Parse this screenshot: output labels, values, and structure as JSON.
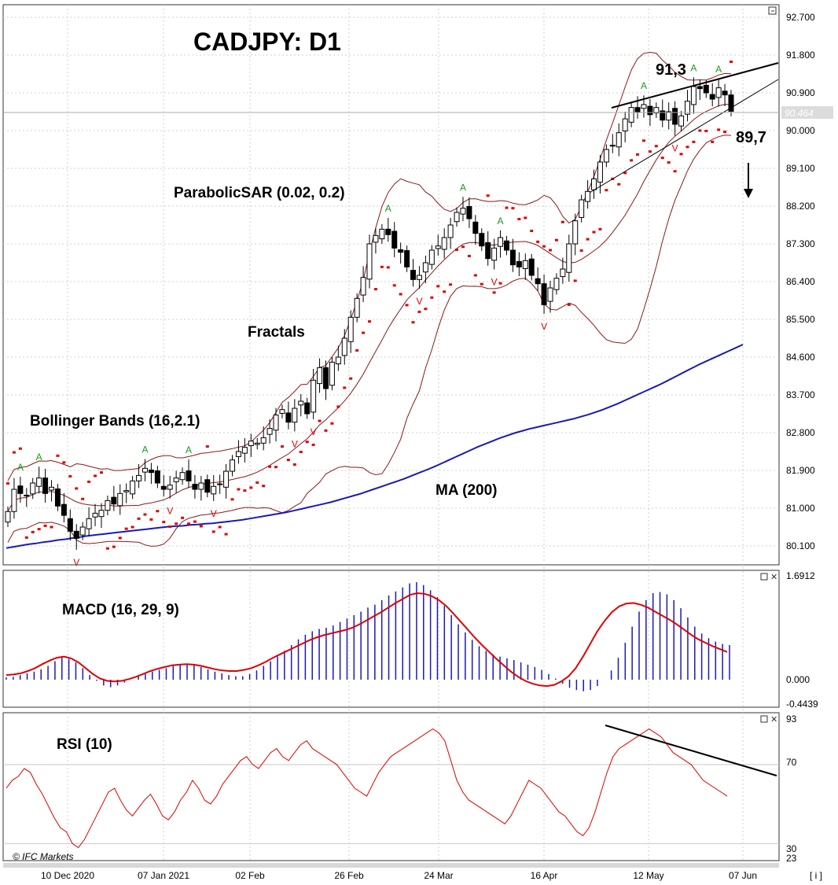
{
  "chart_data": {
    "type": "candlestick",
    "title": "CADJPY: D1",
    "annotations": {
      "resistance_label": "91,3",
      "support_label": "89,7",
      "parabolic_label": "ParabolicSAR (0.02, 0.2)",
      "fractals_label": "Fractals",
      "bollinger_label": "Bollinger Bands (16,2.1)",
      "ma_label": "MA (200)",
      "macd_label": "MACD (16, 29, 9)",
      "rsi_label": "RSI (10)",
      "copyright": "© IFC Markets",
      "corner_label": "[ i ]",
      "fractal_up_glyph": "A",
      "fractal_down_glyph": "V"
    },
    "price_axis": {
      "ticks": [
        "92.700",
        "91.800",
        "90.900",
        "90.000",
        "89.100",
        "88.200",
        "87.300",
        "86.400",
        "85.500",
        "84.600",
        "83.700",
        "82.800",
        "81.900",
        "81.000",
        "80.100"
      ],
      "tick_values": [
        92.7,
        91.8,
        90.9,
        90.0,
        89.1,
        88.2,
        87.3,
        86.4,
        85.5,
        84.6,
        83.7,
        82.8,
        81.9,
        81.0,
        80.1
      ],
      "current_price": "90.464",
      "ylim": [
        79.85,
        93.15
      ]
    },
    "macd_axis": {
      "ticks": [
        "1.6912",
        "0.000",
        "-0.4439"
      ],
      "tick_values": [
        1.6912,
        0.0,
        -0.4439
      ]
    },
    "rsi_axis": {
      "ticks": [
        "93",
        "70",
        "30",
        "23"
      ],
      "tick_values": [
        93,
        70,
        30,
        23
      ]
    },
    "x_axis": {
      "labels": [
        "10 Dec 2020",
        "07 Jan 2021",
        "02 Feb",
        "26 Feb",
        "24 Mar",
        "16 Apr",
        "12 May",
        "07 Jun"
      ]
    },
    "close": [
      80.92,
      81.45,
      81.35,
      81.3,
      81.6,
      81.72,
      81.35,
      81.5,
      81.05,
      80.83,
      80.45,
      80.28,
      80.55,
      80.75,
      80.88,
      80.95,
      81.18,
      81.1,
      81.35,
      81.42,
      81.65,
      81.78,
      81.95,
      81.85,
      81.6,
      81.45,
      81.55,
      81.72,
      81.85,
      81.65,
      81.45,
      81.6,
      81.38,
      81.52,
      81.58,
      81.88,
      82.15,
      82.35,
      82.45,
      82.6,
      82.55,
      82.68,
      82.9,
      83.22,
      83.35,
      83.05,
      83.38,
      83.55,
      83.25,
      84.05,
      84.35,
      83.85,
      84.48,
      84.6,
      85.05,
      85.55,
      86.0,
      86.5,
      87.3,
      87.5,
      87.65,
      87.52,
      87.2,
      87.1,
      86.75,
      86.45,
      86.55,
      86.85,
      87.15,
      87.25,
      87.45,
      87.75,
      88.05,
      88.15,
      87.9,
      87.55,
      87.25,
      86.95,
      87.2,
      87.45,
      87.15,
      86.8,
      86.75,
      86.9,
      86.55,
      86.35,
      85.85,
      86.25,
      86.48,
      86.7,
      87.3,
      87.85,
      88.35,
      88.55,
      88.85,
      89.25,
      89.55,
      89.65,
      89.95,
      90.28,
      90.55,
      90.45,
      90.62,
      90.38,
      90.55,
      90.25,
      90.45,
      90.15,
      90.35,
      90.7,
      91.05,
      91.0,
      90.9,
      90.75,
      91.02,
      90.85,
      90.46
    ],
    "ma200": [
      80.05,
      80.08,
      80.11,
      80.14,
      80.16,
      80.19,
      80.21,
      80.24,
      80.26,
      80.29,
      80.31,
      80.34,
      80.36,
      80.38,
      80.4,
      80.42,
      80.44,
      80.46,
      80.48,
      80.5,
      80.52,
      80.54,
      80.56,
      80.57,
      80.58,
      80.6,
      80.61,
      80.63,
      80.64,
      80.66,
      80.68,
      80.7,
      80.72,
      80.75,
      80.78,
      80.81,
      80.84,
      80.87,
      80.9,
      80.94,
      80.98,
      81.02,
      81.06,
      81.1,
      81.14,
      81.19,
      81.24,
      81.29,
      81.34,
      81.4,
      81.46,
      81.52,
      81.58,
      81.64,
      81.7,
      81.77,
      81.84,
      81.91,
      81.98,
      82.06,
      82.14,
      82.22,
      82.3,
      82.38,
      82.46,
      82.53,
      82.6,
      82.67,
      82.73,
      82.79,
      82.84,
      82.89,
      82.93,
      82.97,
      83.01,
      83.05,
      83.09,
      83.13,
      83.18,
      83.23,
      83.29,
      83.35,
      83.42,
      83.49,
      83.57,
      83.65,
      83.73,
      83.81,
      83.89,
      83.97,
      84.06,
      84.15,
      84.24,
      84.33,
      84.42,
      84.5,
      84.58,
      84.66,
      84.74,
      84.82,
      84.9
    ],
    "macd_histogram": [
      0.04,
      0.05,
      0.08,
      0.11,
      0.14,
      0.18,
      0.24,
      0.32,
      0.38,
      0.36,
      0.3,
      0.2,
      0.08,
      -0.02,
      -0.1,
      -0.13,
      -0.1,
      -0.05,
      0.0,
      0.06,
      0.1,
      0.14,
      0.17,
      0.2,
      0.24,
      0.26,
      0.27,
      0.25,
      0.22,
      0.18,
      0.14,
      0.11,
      0.08,
      0.06,
      0.06,
      0.1,
      0.16,
      0.24,
      0.32,
      0.4,
      0.5,
      0.6,
      0.7,
      0.78,
      0.84,
      0.88,
      0.9,
      0.94,
      1.0,
      1.06,
      1.12,
      1.18,
      1.25,
      1.3,
      1.38,
      1.46,
      1.53,
      1.6,
      1.67,
      1.69,
      1.64,
      1.55,
      1.43,
      1.28,
      1.12,
      0.96,
      0.82,
      0.69,
      0.58,
      0.5,
      0.44,
      0.4,
      0.37,
      0.34,
      0.3,
      0.26,
      0.22,
      0.17,
      0.1,
      0.02,
      -0.07,
      -0.14,
      -0.18,
      -0.2,
      -0.18,
      -0.11,
      0.0,
      0.16,
      0.38,
      0.64,
      0.92,
      1.18,
      1.38,
      1.5,
      1.52,
      1.48,
      1.38,
      1.24,
      1.08,
      0.92,
      0.8,
      0.72,
      0.66,
      0.62,
      0.6
    ],
    "macd_signal": [
      0.08,
      0.09,
      0.11,
      0.15,
      0.2,
      0.27,
      0.33,
      0.38,
      0.4,
      0.37,
      0.3,
      0.2,
      0.1,
      0.02,
      -0.02,
      -0.03,
      -0.02,
      0.01,
      0.05,
      0.1,
      0.15,
      0.19,
      0.22,
      0.25,
      0.26,
      0.27,
      0.26,
      0.24,
      0.21,
      0.18,
      0.16,
      0.15,
      0.15,
      0.17,
      0.2,
      0.25,
      0.31,
      0.38,
      0.44,
      0.5,
      0.56,
      0.62,
      0.68,
      0.73,
      0.77,
      0.8,
      0.83,
      0.86,
      0.9,
      0.96,
      1.03,
      1.1,
      1.17,
      1.25,
      1.33,
      1.4,
      1.47,
      1.5,
      1.49,
      1.45,
      1.38,
      1.28,
      1.15,
      1.01,
      0.87,
      0.73,
      0.6,
      0.48,
      0.36,
      0.25,
      0.14,
      0.05,
      -0.02,
      -0.07,
      -0.1,
      -0.11,
      -0.09,
      -0.03,
      0.06,
      0.2,
      0.4,
      0.62,
      0.84,
      1.02,
      1.17,
      1.27,
      1.32,
      1.33,
      1.3,
      1.25,
      1.18,
      1.11,
      1.04,
      0.96,
      0.87,
      0.78,
      0.7,
      0.64,
      0.58,
      0.53,
      0.48
    ],
    "rsi": [
      58,
      62,
      64,
      68,
      66,
      60,
      55,
      49,
      43,
      38,
      36,
      30,
      28,
      32,
      38,
      44,
      50,
      56,
      58,
      52,
      47,
      44,
      48,
      52,
      55,
      50,
      44,
      42,
      46,
      52,
      56,
      62,
      58,
      52,
      50,
      54,
      60,
      64,
      68,
      72,
      74,
      70,
      68,
      72,
      76,
      78,
      74,
      72,
      76,
      80,
      82,
      78,
      76,
      74,
      72,
      70,
      66,
      62,
      58,
      56,
      54,
      60,
      66,
      70,
      74,
      76,
      78,
      80,
      82,
      84,
      86,
      88,
      86,
      82,
      72,
      62,
      56,
      52,
      50,
      48,
      46,
      44,
      42,
      40,
      44,
      50,
      56,
      62,
      60,
      58,
      54,
      50,
      46,
      44,
      40,
      36,
      34,
      38,
      46,
      56,
      66,
      74,
      78,
      80,
      82,
      84,
      86,
      88,
      86,
      84,
      80,
      76,
      74,
      72,
      70,
      66,
      62,
      60,
      58,
      56,
      54
    ]
  }
}
